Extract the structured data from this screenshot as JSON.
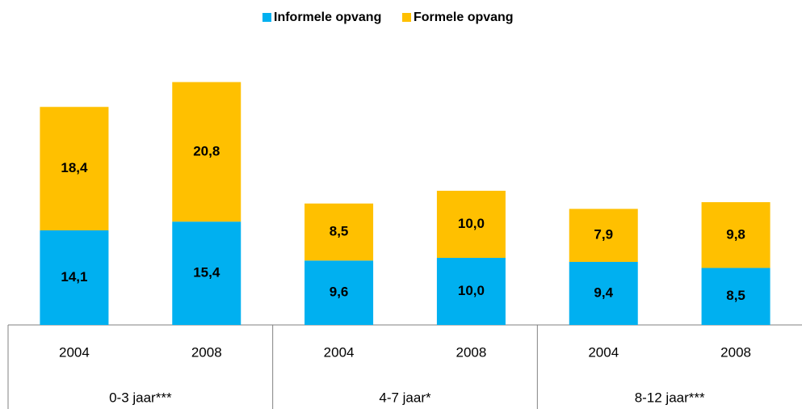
{
  "chart_data": {
    "type": "stacked-bar",
    "categories": [
      "2004",
      "2008",
      "2004",
      "2008",
      "2004",
      "2008"
    ],
    "groups": [
      "0-3 jaar***",
      "4-7 jaar*",
      "8-12 jaar***"
    ],
    "series": [
      {
        "name": "Informele opvang",
        "color": "#00b0f0",
        "values": [
          14.1,
          15.4,
          9.6,
          10.0,
          9.4,
          8.5
        ],
        "value_labels": [
          "14,1",
          "15,4",
          "9,6",
          "10,0",
          "9,4",
          "8,5"
        ]
      },
      {
        "name": "Formele opvang",
        "color": "#ffc000",
        "values": [
          18.4,
          20.8,
          8.5,
          10.0,
          7.9,
          9.8
        ],
        "value_labels": [
          "18,4",
          "20,8",
          "8,5",
          "10,0",
          "7,9",
          "9,8"
        ]
      }
    ],
    "legend": "top"
  }
}
